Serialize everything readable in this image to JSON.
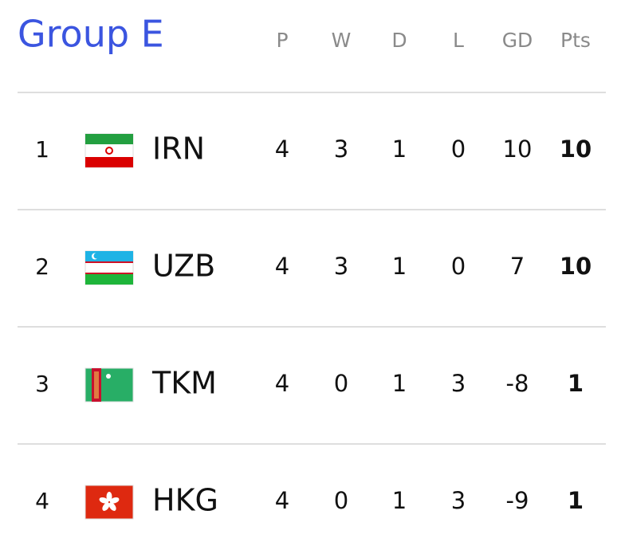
{
  "title": "Group E",
  "headers": [
    "P",
    "W",
    "D",
    "L",
    "GD",
    "Pts"
  ],
  "rows": [
    {
      "rank": 1,
      "team": "IRN",
      "values": [
        4,
        3,
        1,
        0,
        10,
        10
      ]
    },
    {
      "rank": 2,
      "team": "UZB",
      "values": [
        4,
        3,
        1,
        0,
        7,
        10
      ]
    },
    {
      "rank": 3,
      "team": "TKM",
      "values": [
        4,
        0,
        1,
        3,
        -8,
        1
      ]
    },
    {
      "rank": 4,
      "team": "HKG",
      "values": [
        4,
        0,
        1,
        3,
        -9,
        1
      ]
    }
  ]
}
